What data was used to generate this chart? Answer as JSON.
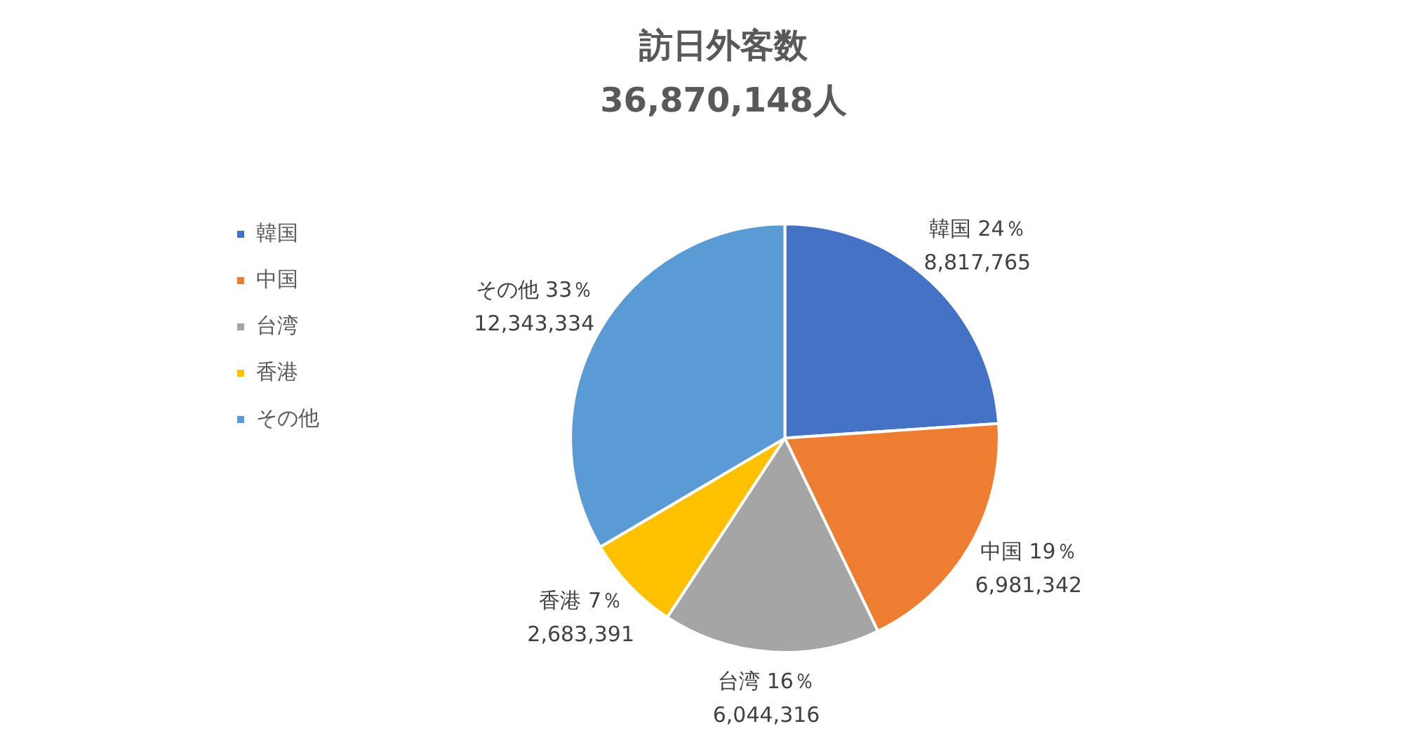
{
  "chart_data": {
    "type": "pie",
    "title": "訪日外客数",
    "subtitle": "36,870,148人",
    "categories": [
      "韓国",
      "中国",
      "台湾",
      "香港",
      "その他"
    ],
    "values": [
      8817765,
      6981342,
      6044316,
      2683391,
      12343334
    ],
    "colors": [
      "#4472c4",
      "#ed7d31",
      "#a5a5a5",
      "#ffc000",
      "#5b9bd5"
    ],
    "value_labels": [
      "24％\n8,817,765",
      "19％\n6,981,342",
      "16％\n6,044,316",
      "7％\n2,683,391",
      "33％\n12,343,334"
    ],
    "data_labels": true,
    "legend": "left"
  }
}
